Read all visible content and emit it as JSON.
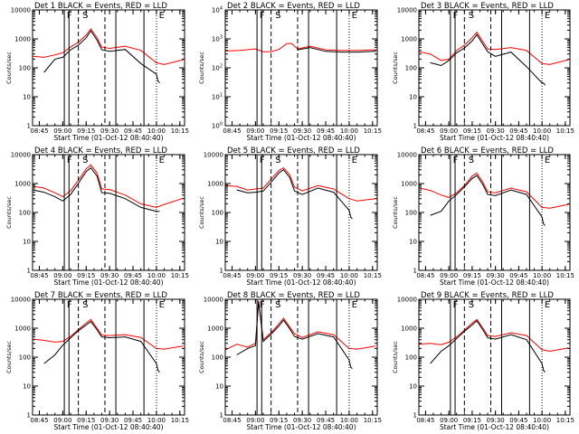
{
  "chart_data": {
    "type": "line",
    "y_scale": "log",
    "ylim": [
      1,
      10000
    ],
    "xlim": [
      "08:40:40",
      "10:18"
    ],
    "grid": false,
    "x_ticks": [
      "08:45",
      "09:00",
      "09:15",
      "09:30",
      "09:45",
      "10:00",
      "10:15"
    ],
    "y_tick_labels": [
      "1",
      "10",
      "100",
      "1000",
      "10000"
    ],
    "y_tick_labels_panel2": [
      "10^0",
      "10^1",
      "10^2",
      "10^3",
      "10^4"
    ],
    "xlabel": "Start Time (01-Oct-12 08:40:40)",
    "ylabel": "Counts/sec",
    "solid_markers": [
      "09:01",
      "09:04",
      "09:34",
      "09:52"
    ],
    "dashed_markers": [
      "09:10",
      "09:27"
    ],
    "dotted_markers": [
      "10:00"
    ],
    "marker_letters": [
      {
        "text": "S",
        "time": "09:12"
      },
      {
        "text": "F",
        "time": "09:02"
      },
      {
        "text": "E",
        "time": "10:01"
      }
    ],
    "series_legend": "BLACK = Events, RED = LLD",
    "panels": [
      {
        "title": "Det 1  BLACK = Events, RED = LLD",
        "series": [
          {
            "name": "LLD",
            "color": "#ff0000",
            "x": [
              "08:41",
              "08:48",
              "08:55",
              "09:00",
              "09:05",
              "09:10",
              "09:15",
              "09:18",
              "09:22",
              "09:25",
              "09:30",
              "09:40",
              "09:50",
              "10:00",
              "10:05",
              "10:17"
            ],
            "values": [
              250,
              230,
              280,
              330,
              520,
              760,
              1350,
              2200,
              1100,
              520,
              470,
              560,
              400,
              150,
              130,
              190
            ]
          },
          {
            "name": "Events",
            "color": "#000000",
            "x": [
              "08:48",
              "08:55",
              "09:00",
              "09:05",
              "09:10",
              "09:15",
              "09:18",
              "09:22",
              "09:25",
              "09:30",
              "09:40",
              "09:50",
              "10:00",
              "10:01",
              "10:02"
            ],
            "values": [
              70,
              200,
              230,
              420,
              600,
              1100,
              1900,
              900,
              420,
              370,
              430,
              140,
              60,
              35,
              30
            ]
          }
        ]
      },
      {
        "title": "Det 2  BLACK = Events, RED = LLD",
        "series": [
          {
            "name": "LLD",
            "color": "#ff0000",
            "x": [
              "08:41",
              "08:50",
              "09:00",
              "09:05",
              "09:10",
              "09:15",
              "09:20",
              "09:23",
              "09:27",
              "09:35",
              "09:45",
              "09:55",
              "10:05",
              "10:17"
            ],
            "values": [
              380,
              400,
              450,
              360,
              360,
              430,
              680,
              700,
              450,
              560,
              420,
              400,
              400,
              420
            ]
          },
          {
            "name": "Events",
            "color": "#000000",
            "x": [
              "09:27",
              "09:35",
              "09:45",
              "09:55",
              "10:05",
              "10:17"
            ],
            "values": [
              420,
              500,
              370,
              350,
              350,
              370
            ]
          }
        ]
      },
      {
        "title": "Det 3  BLACK = Events, RED = LLD",
        "series": [
          {
            "name": "LLD",
            "color": "#ff0000",
            "x": [
              "08:41",
              "08:48",
              "08:55",
              "09:00",
              "09:05",
              "09:10",
              "09:15",
              "09:18",
              "09:22",
              "09:25",
              "09:30",
              "09:40",
              "09:50",
              "10:00",
              "10:05",
              "10:17"
            ],
            "values": [
              360,
              300,
              180,
              200,
              400,
              600,
              1100,
              1700,
              800,
              450,
              430,
              500,
              400,
              140,
              130,
              190
            ]
          },
          {
            "name": "Events",
            "color": "#000000",
            "x": [
              "08:48",
              "08:55",
              "09:00",
              "09:05",
              "09:10",
              "09:15",
              "09:18",
              "09:22",
              "09:25",
              "09:30",
              "09:40",
              "09:50",
              "10:00",
              "10:01",
              "10:02"
            ],
            "values": [
              150,
              120,
              180,
              330,
              480,
              850,
              1400,
              640,
              360,
              250,
              350,
              110,
              30,
              30,
              25
            ]
          }
        ]
      },
      {
        "title": "Det 4  BLACK = Events, RED = LLD",
        "series": [
          {
            "name": "LLD",
            "color": "#ff0000",
            "x": [
              "08:41",
              "08:48",
              "08:55",
              "09:00",
              "09:05",
              "09:10",
              "09:15",
              "09:18",
              "09:22",
              "09:25",
              "09:30",
              "09:40",
              "09:50",
              "10:00",
              "10:05",
              "10:17"
            ],
            "values": [
              800,
              700,
              480,
              350,
              560,
              1300,
              3200,
              4400,
              2300,
              650,
              620,
              400,
              200,
              150,
              190,
              310
            ]
          },
          {
            "name": "Events",
            "color": "#000000",
            "x": [
              "08:41",
              "08:48",
              "08:55",
              "09:00",
              "09:05",
              "09:10",
              "09:15",
              "09:18",
              "09:22",
              "09:25",
              "09:30",
              "09:40",
              "09:50",
              "10:00",
              "10:01",
              "10:02"
            ],
            "values": [
              600,
              500,
              350,
              250,
              420,
              1000,
              2600,
              3500,
              1800,
              480,
              460,
              300,
              150,
              110,
              110,
              110
            ]
          }
        ]
      },
      {
        "title": "Det 5  BLACK = Events, RED = LLD",
        "series": [
          {
            "name": "LLD",
            "color": "#ff0000",
            "x": [
              "08:41",
              "08:48",
              "08:55",
              "09:00",
              "09:05",
              "09:10",
              "09:15",
              "09:18",
              "09:22",
              "09:25",
              "09:30",
              "09:40",
              "09:50",
              "10:00",
              "10:05",
              "10:17"
            ],
            "values": [
              850,
              800,
              600,
              650,
              700,
              1400,
              2800,
              3500,
              2000,
              750,
              560,
              850,
              650,
              300,
              250,
              300
            ]
          },
          {
            "name": "Events",
            "color": "#000000",
            "x": [
              "08:48",
              "08:55",
              "09:00",
              "09:05",
              "09:10",
              "09:15",
              "09:18",
              "09:22",
              "09:25",
              "09:30",
              "09:40",
              "09:50",
              "10:00",
              "10:01",
              "10:02"
            ],
            "values": [
              600,
              480,
              500,
              550,
              1100,
              2300,
              3000,
              1600,
              550,
              420,
              700,
              500,
              120,
              70,
              60
            ]
          }
        ]
      },
      {
        "title": "Det 6  BLACK = Events, RED = LLD",
        "series": [
          {
            "name": "LLD",
            "color": "#ff0000",
            "x": [
              "08:41",
              "08:48",
              "08:55",
              "09:00",
              "09:05",
              "09:10",
              "09:15",
              "09:18",
              "09:22",
              "09:25",
              "09:30",
              "09:40",
              "09:50",
              "10:00",
              "10:05",
              "10:17"
            ],
            "values": [
              700,
              580,
              400,
              330,
              480,
              850,
              1800,
              2300,
              1100,
              520,
              480,
              700,
              520,
              150,
              140,
              190
            ]
          },
          {
            "name": "Events",
            "color": "#000000",
            "x": [
              "08:48",
              "08:55",
              "09:00",
              "09:05",
              "09:10",
              "09:15",
              "09:18",
              "09:22",
              "09:25",
              "09:30",
              "09:40",
              "09:50",
              "10:00",
              "10:01",
              "10:02"
            ],
            "values": [
              80,
              110,
              250,
              420,
              760,
              1500,
              1900,
              900,
              420,
              380,
              600,
              420,
              70,
              40,
              35
            ]
          }
        ]
      },
      {
        "title": "Det 7  BLACK = Events, RED = LLD",
        "series": [
          {
            "name": "LLD",
            "color": "#ff0000",
            "x": [
              "08:41",
              "08:48",
              "08:55",
              "09:00",
              "09:05",
              "09:10",
              "09:15",
              "09:18",
              "09:22",
              "09:25",
              "09:30",
              "09:40",
              "09:50",
              "10:00",
              "10:05",
              "10:17"
            ],
            "values": [
              420,
              380,
              330,
              350,
              520,
              900,
              1500,
              2000,
              1000,
              580,
              560,
              600,
              480,
              200,
              190,
              240
            ]
          },
          {
            "name": "Events",
            "color": "#000000",
            "x": [
              "08:48",
              "08:55",
              "09:00",
              "09:05",
              "09:10",
              "09:15",
              "09:18",
              "09:22",
              "09:25",
              "09:30",
              "09:40",
              "09:50",
              "10:00",
              "10:01",
              "10:02"
            ],
            "values": [
              60,
              120,
              260,
              460,
              820,
              1300,
              1700,
              880,
              500,
              470,
              500,
              350,
              60,
              35,
              30
            ]
          }
        ]
      },
      {
        "title": "Det 8  BLACK = Events, RED = LLD",
        "series": [
          {
            "name": "LLD",
            "color": "#ff0000",
            "x": [
              "08:41",
              "08:48",
              "08:55",
              "09:00",
              "09:02",
              "09:05",
              "09:10",
              "09:15",
              "09:18",
              "09:22",
              "09:25",
              "09:30",
              "09:40",
              "09:50",
              "10:00",
              "10:05",
              "10:17"
            ],
            "values": [
              180,
              280,
              220,
              300,
              9000,
              400,
              700,
              1400,
              2200,
              1100,
              650,
              480,
              750,
              600,
              200,
              190,
              240
            ]
          },
          {
            "name": "Events",
            "color": "#000000",
            "x": [
              "08:48",
              "08:55",
              "09:00",
              "09:02",
              "09:05",
              "09:10",
              "09:15",
              "09:18",
              "09:22",
              "09:25",
              "09:30",
              "09:40",
              "09:50",
              "10:00",
              "10:01",
              "10:02"
            ],
            "values": [
              120,
              200,
              250,
              8500,
              350,
              620,
              1200,
              1900,
              950,
              520,
              420,
              650,
              500,
              80,
              45,
              40
            ]
          }
        ]
      },
      {
        "title": "Det 9  BLACK = Events, RED = LLD",
        "series": [
          {
            "name": "LLD",
            "color": "#ff0000",
            "x": [
              "08:41",
              "08:48",
              "08:55",
              "09:00",
              "09:05",
              "09:10",
              "09:15",
              "09:18",
              "09:22",
              "09:25",
              "09:30",
              "09:40",
              "09:50",
              "10:00",
              "10:05",
              "10:17"
            ],
            "values": [
              280,
              300,
              270,
              330,
              500,
              850,
              1500,
              2000,
              1000,
              560,
              520,
              700,
              560,
              180,
              160,
              210
            ]
          },
          {
            "name": "Events",
            "color": "#000000",
            "x": [
              "08:48",
              "08:55",
              "09:00",
              "09:05",
              "09:10",
              "09:15",
              "09:18",
              "09:22",
              "09:25",
              "09:30",
              "09:40",
              "09:50",
              "10:00",
              "10:01",
              "10:02"
            ],
            "values": [
              60,
              160,
              250,
              440,
              780,
              1300,
              1800,
              860,
              470,
              420,
              600,
              400,
              60,
              35,
              30
            ]
          }
        ]
      }
    ]
  }
}
